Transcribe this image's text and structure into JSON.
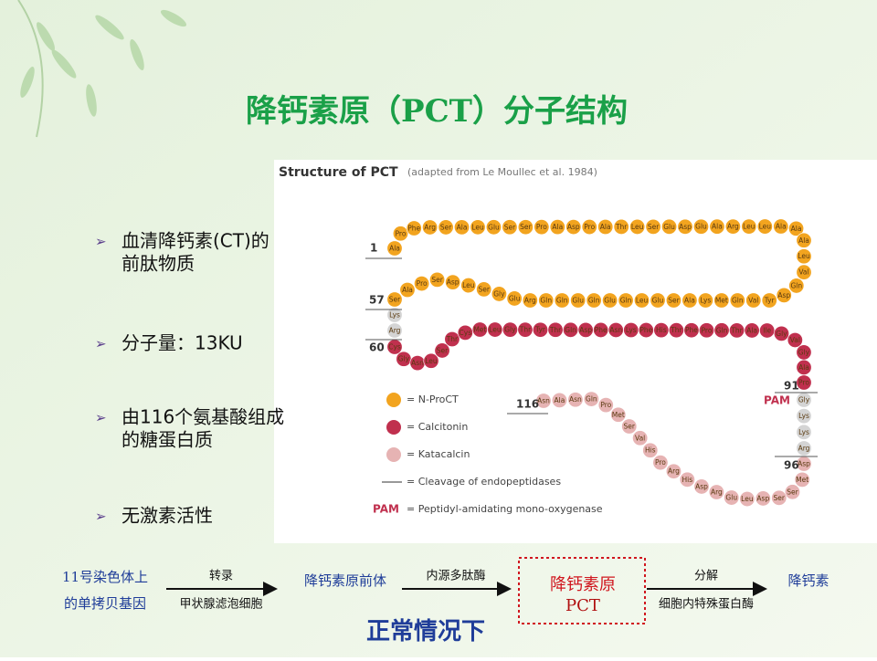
{
  "title": "降钙素原（PCT）分子结构",
  "bullets": [
    {
      "lines": [
        "血清降钙素(CT)的",
        "前肽物质"
      ]
    },
    {
      "lines": [
        "分子量：13KU"
      ]
    },
    {
      "lines": [
        "由116个氨基酸组成",
        "的糖蛋白质"
      ]
    },
    {
      "lines": [
        "无激素活性"
      ]
    }
  ],
  "figure": {
    "heading": "Structure of PCT",
    "source": "(adapted from Le Moullec et al. 1984)",
    "segments": [
      {
        "color": "#f2a41f",
        "residues": [
          "Ala",
          "Pro",
          "Phe",
          "Arg",
          "Ser",
          "Ala",
          "Leu",
          "Glu",
          "Ser",
          "Ser",
          "Pro",
          "Ala",
          "Asp",
          "Pro",
          "Ala",
          "Thr",
          "Leu",
          "Ser",
          "Glu",
          "Asp",
          "Glu",
          "Ala",
          "Arg",
          "Leu",
          "Leu",
          "Ala",
          "Ala",
          "Ala",
          "Leu",
          "Val",
          "Gln",
          "Asp",
          "Tyr",
          "Val",
          "Gln",
          "Met",
          "Lys",
          "Ala",
          "Ser",
          "Glu",
          "Leu",
          "Gln",
          "Glu",
          "Gln",
          "Glu",
          "Gln",
          "Gln",
          "Arg",
          "Glu",
          "Gly",
          "Ser",
          "Leu",
          "Asp",
          "Ser",
          "Pro",
          "Ala",
          "Ser"
        ]
      },
      {
        "color": "#d4d4d4",
        "residues": [
          "Lys",
          "Arg"
        ]
      },
      {
        "color": "#c0304e",
        "residues": [
          "Cys",
          "Gly",
          "Asn",
          "Leu",
          "Ser",
          "Thr",
          "Cys",
          "Met",
          "Leu",
          "Gly",
          "Thr",
          "Tyr",
          "Thr",
          "Gln",
          "Asp",
          "Phe",
          "Asn",
          "Lys",
          "Phe",
          "His",
          "Thr",
          "Phe",
          "Pro",
          "Gln",
          "Thr",
          "Ala",
          "Ile",
          "Gly",
          "Val",
          "Gly",
          "Ala",
          "Pro"
        ]
      },
      {
        "color": "#d4d4d4",
        "residues": [
          "Gly",
          "Lys",
          "Lys",
          "Arg"
        ]
      },
      {
        "color": "#e6b3b3",
        "residues": [
          "Asp",
          "Met",
          "Ser",
          "Ser",
          "Asp",
          "Leu",
          "Glu",
          "Arg",
          "Asp",
          "His",
          "Arg",
          "Pro",
          "His",
          "Val",
          "Ser",
          "Met",
          "Pro",
          "Gln",
          "Asn",
          "Ala",
          "Asn"
        ]
      }
    ],
    "positions": [
      1,
      57,
      60,
      91,
      96,
      116
    ],
    "pam": "PAM",
    "legend": [
      {
        "color": "#f2a41f",
        "text": "= N-ProCT"
      },
      {
        "color": "#c0304e",
        "text": "= Calcitonin"
      },
      {
        "color": "#e6b3b3",
        "text": "= Katacalcin"
      },
      {
        "text": "= Cleavage of endopeptidases"
      },
      {
        "key": "PAM",
        "text": "= Peptidyl-amidating mono-oxygenase"
      }
    ]
  },
  "flow": {
    "nodes": [
      {
        "lines": [
          "11号染色体上",
          "的单拷贝基因"
        ]
      },
      {
        "lines": [
          "降钙素原前体"
        ]
      },
      {
        "lines": [
          "降钙素原",
          "PCT"
        ]
      },
      {
        "lines": [
          "降钙素"
        ]
      }
    ],
    "arrows": [
      {
        "above": "转录",
        "below": "甲状腺滤泡细胞"
      },
      {
        "above": "内源多肽酶"
      },
      {
        "above": "分解",
        "below": "细胞内特殊蛋白酶"
      }
    ],
    "caption": "正常情况下"
  }
}
